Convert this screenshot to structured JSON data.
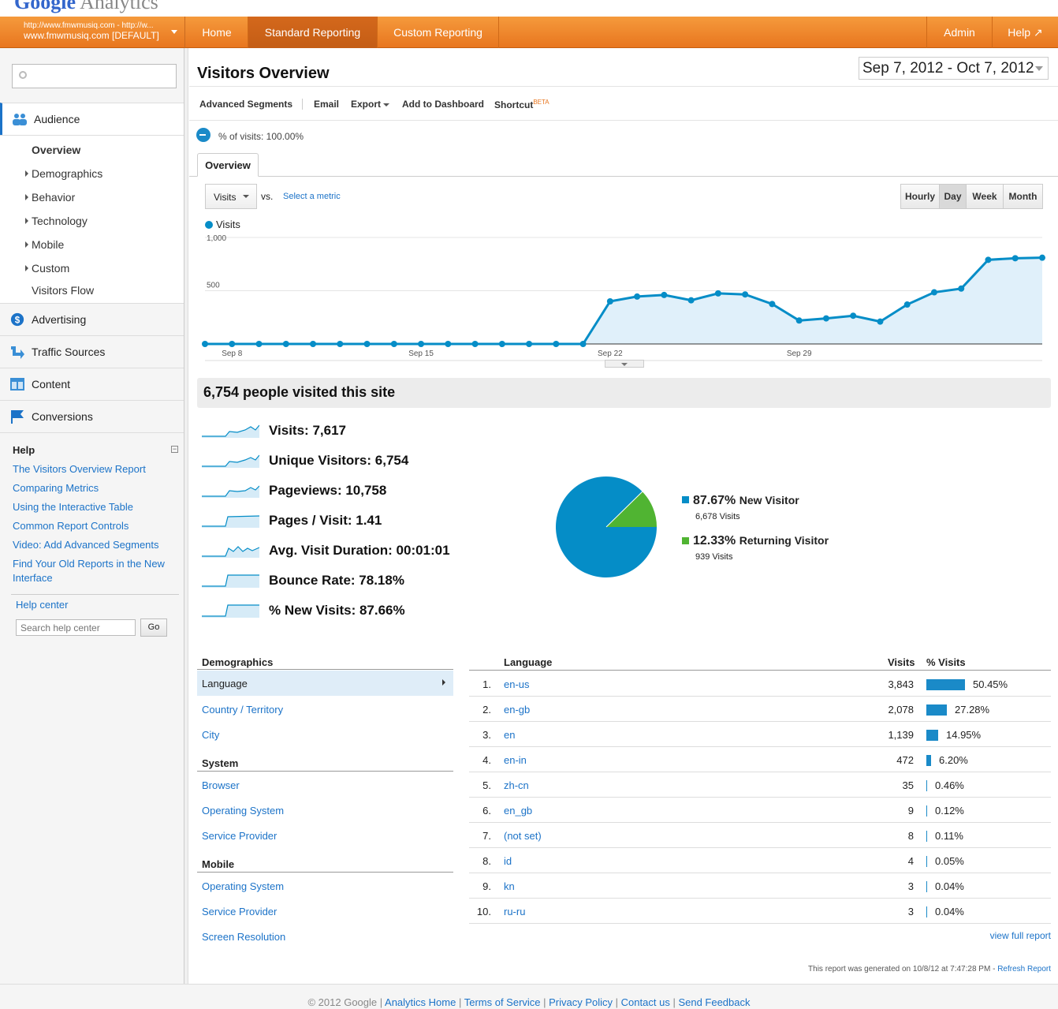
{
  "logo": {
    "google": "Google",
    "analytics": "Analytics"
  },
  "account": {
    "url": "http://www.fmwmusiq.com - http://w...",
    "name": "www.fmwmusiq.com [DEFAULT]"
  },
  "topnav": {
    "home": "Home",
    "standard": "Standard Reporting",
    "custom": "Custom Reporting",
    "admin": "Admin",
    "help": "Help"
  },
  "sidebar": {
    "search_placeholder": "",
    "audience": "Audience",
    "sub": [
      "Overview",
      "Demographics",
      "Behavior",
      "Technology",
      "Mobile",
      "Custom",
      "Visitors Flow"
    ],
    "advertising": "Advertising",
    "traffic": "Traffic Sources",
    "content": "Content",
    "conversions": "Conversions",
    "help_title": "Help",
    "help_links": [
      "The Visitors Overview Report",
      "Comparing Metrics",
      "Using the Interactive Table",
      "Common Report Controls",
      "Video: Add Advanced Segments",
      "Find Your Old Reports in the New",
      "Interface"
    ],
    "help_center": "Help center",
    "help_search_placeholder": "Search help center",
    "go": "Go"
  },
  "page": {
    "title": "Visitors Overview",
    "date_range": "Sep 7, 2012 - Oct 7, 2012",
    "toolbar": {
      "segments": "Advanced Segments",
      "email": "Email",
      "export": "Export",
      "dashboard": "Add to Dashboard",
      "shortcut": "Shortcut",
      "beta": "BETA"
    },
    "segment_pct": "% of visits: 100.00%",
    "tab": "Overview",
    "metric_select": "Visits",
    "vs": "vs.",
    "select_metric": "Select a metric",
    "granularity": [
      "Hourly",
      "Day",
      "Week",
      "Month"
    ],
    "legend": "Visits",
    "summary_title": "6,754 people visited this site",
    "metrics": [
      {
        "label": "Visits:",
        "value": "7,617"
      },
      {
        "label": "Unique Visitors:",
        "value": "6,754"
      },
      {
        "label": "Pageviews:",
        "value": "10,758"
      },
      {
        "label": "Pages / Visit:",
        "value": "1.41"
      },
      {
        "label": "Avg. Visit Duration:",
        "value": "00:01:01"
      },
      {
        "label": "Bounce Rate:",
        "value": "78.18%"
      },
      {
        "label": "% New Visits:",
        "value": "87.66%"
      }
    ],
    "pie": {
      "new_pct": "87.67%",
      "new_label": "New Visitor",
      "new_visits": "6,678 Visits",
      "ret_pct": "12.33%",
      "ret_label": "Returning Visitor",
      "ret_visits": "939 Visits",
      "new_color": "#058dc7",
      "ret_color": "#50b432"
    },
    "demographics": {
      "head": "Demographics",
      "items": [
        "Language",
        "Country / Territory",
        "City"
      ],
      "system_head": "System",
      "system": [
        "Browser",
        "Operating System",
        "Service Provider"
      ],
      "mobile_head": "Mobile",
      "mobile": [
        "Operating System",
        "Service Provider",
        "Screen Resolution"
      ]
    },
    "table": {
      "col_language": "Language",
      "col_visits": "Visits",
      "col_pct": "% Visits",
      "rows": [
        {
          "n": "1.",
          "lang": "en-us",
          "visits": "3,843",
          "pct": "50.45%",
          "frac": 0.5045
        },
        {
          "n": "2.",
          "lang": "en-gb",
          "visits": "2,078",
          "pct": "27.28%",
          "frac": 0.2728
        },
        {
          "n": "3.",
          "lang": "en",
          "visits": "1,139",
          "pct": "14.95%",
          "frac": 0.1495
        },
        {
          "n": "4.",
          "lang": "en-in",
          "visits": "472",
          "pct": "6.20%",
          "frac": 0.062
        },
        {
          "n": "5.",
          "lang": "zh-cn",
          "visits": "35",
          "pct": "0.46%",
          "frac": 0.0046
        },
        {
          "n": "6.",
          "lang": "en_gb",
          "visits": "9",
          "pct": "0.12%",
          "frac": 0.0012
        },
        {
          "n": "7.",
          "lang": "(not set)",
          "visits": "8",
          "pct": "0.11%",
          "frac": 0.0011
        },
        {
          "n": "8.",
          "lang": "id",
          "visits": "4",
          "pct": "0.05%",
          "frac": 0.0005
        },
        {
          "n": "9.",
          "lang": "kn",
          "visits": "3",
          "pct": "0.04%",
          "frac": 0.0004
        },
        {
          "n": "10.",
          "lang": "ru-ru",
          "visits": "3",
          "pct": "0.04%",
          "frac": 0.0004
        }
      ],
      "view_full": "view full report"
    },
    "generated": "This report was generated on 10/8/12 at 7:47:28 PM -",
    "refresh": "Refresh Report"
  },
  "chart_data": {
    "type": "area",
    "series": [
      {
        "name": "Visits",
        "values": [
          0,
          0,
          0,
          0,
          0,
          0,
          0,
          0,
          0,
          0,
          0,
          0,
          0,
          0,
          0,
          400,
          445,
          460,
          410,
          475,
          465,
          375,
          220,
          240,
          265,
          210,
          370,
          485,
          520,
          790,
          805,
          810
        ]
      }
    ],
    "x_ticks": [
      "Sep 8",
      "Sep 15",
      "Sep 22",
      "Sep 29"
    ],
    "y_ticks": [
      "500",
      "1,000"
    ],
    "ylim": [
      0,
      1000
    ],
    "color": "#058dc7"
  },
  "footer": {
    "copyright": "© 2012 Google",
    "links": [
      "Analytics Home",
      "Terms of Service",
      "Privacy Policy",
      "Contact us",
      "Send Feedback"
    ]
  }
}
